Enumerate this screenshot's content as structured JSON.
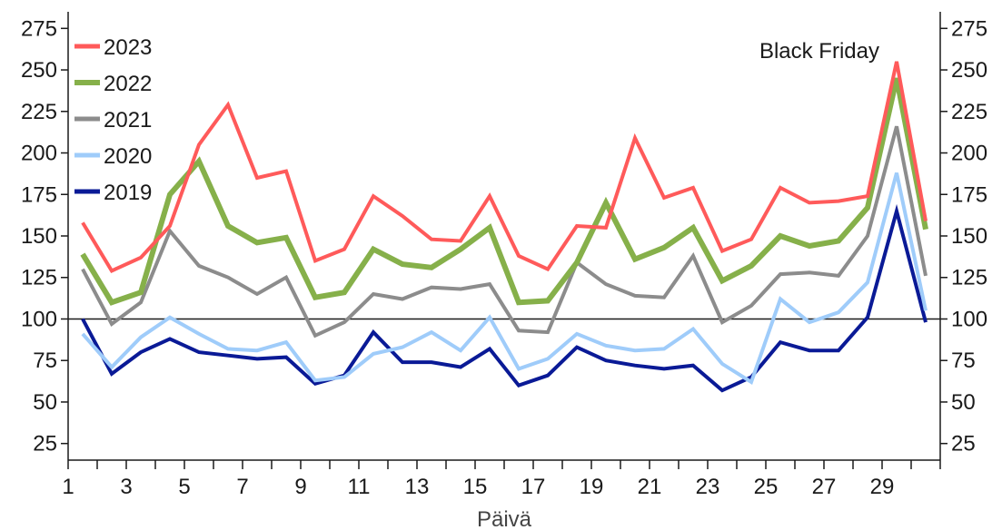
{
  "chart_data": {
    "type": "line",
    "title": "",
    "xlabel": "Päivä",
    "ylabel": "",
    "xlim": [
      1,
      31
    ],
    "ylim": [
      15,
      285
    ],
    "x_ticks": [
      1,
      3,
      5,
      7,
      9,
      11,
      13,
      15,
      17,
      19,
      21,
      23,
      25,
      27,
      29
    ],
    "y_ticks": [
      25,
      50,
      75,
      100,
      125,
      150,
      175,
      200,
      225,
      250,
      275
    ],
    "reference_line": 100,
    "grid": false,
    "legend_position": "top-left",
    "annotation": "Black Friday",
    "x": [
      1.5,
      2.5,
      3.5,
      4.5,
      5.5,
      6.5,
      7.5,
      8.5,
      9.5,
      10.5,
      11.5,
      12.5,
      13.5,
      14.5,
      15.5,
      16.5,
      17.5,
      18.5,
      19.5,
      20.5,
      21.5,
      22.5,
      23.5,
      24.5,
      25.5,
      26.5,
      27.5,
      28.5,
      29.5,
      30.5
    ],
    "series": [
      {
        "name": "2023",
        "color": "#ff5a5a",
        "width": 4,
        "values": [
          158,
          129,
          137,
          156,
          205,
          229,
          185,
          189,
          135,
          142,
          174,
          162,
          148,
          147,
          174,
          138,
          130,
          156,
          155,
          209,
          173,
          179,
          141,
          148,
          179,
          170,
          171,
          174,
          255,
          159
        ]
      },
      {
        "name": "2022",
        "color": "#86b04a",
        "width": 6,
        "values": [
          139,
          110,
          116,
          175,
          195,
          156,
          146,
          149,
          113,
          116,
          142,
          133,
          131,
          142,
          155,
          110,
          111,
          134,
          170,
          136,
          143,
          155,
          123,
          132,
          150,
          144,
          147,
          167,
          245,
          154
        ]
      },
      {
        "name": "2021",
        "color": "#8c8c8c",
        "width": 4,
        "values": [
          130,
          97,
          110,
          153,
          132,
          125,
          115,
          125,
          90,
          98,
          115,
          112,
          119,
          118,
          121,
          93,
          92,
          134,
          121,
          114,
          113,
          138,
          98,
          108,
          127,
          128,
          126,
          150,
          216,
          126
        ]
      },
      {
        "name": "2020",
        "color": "#9fccfa",
        "width": 4,
        "values": [
          91,
          71,
          89,
          101,
          91,
          82,
          81,
          86,
          63,
          65,
          79,
          83,
          92,
          81,
          101,
          70,
          76,
          91,
          84,
          81,
          82,
          94,
          73,
          62,
          112,
          98,
          104,
          122,
          188,
          105
        ]
      },
      {
        "name": "2019",
        "color": "#0a1a96",
        "width": 4,
        "values": [
          100,
          67,
          80,
          88,
          80,
          78,
          76,
          77,
          61,
          66,
          92,
          74,
          74,
          71,
          82,
          60,
          66,
          83,
          75,
          72,
          70,
          72,
          57,
          65,
          86,
          81,
          81,
          101,
          165,
          98
        ]
      }
    ]
  }
}
